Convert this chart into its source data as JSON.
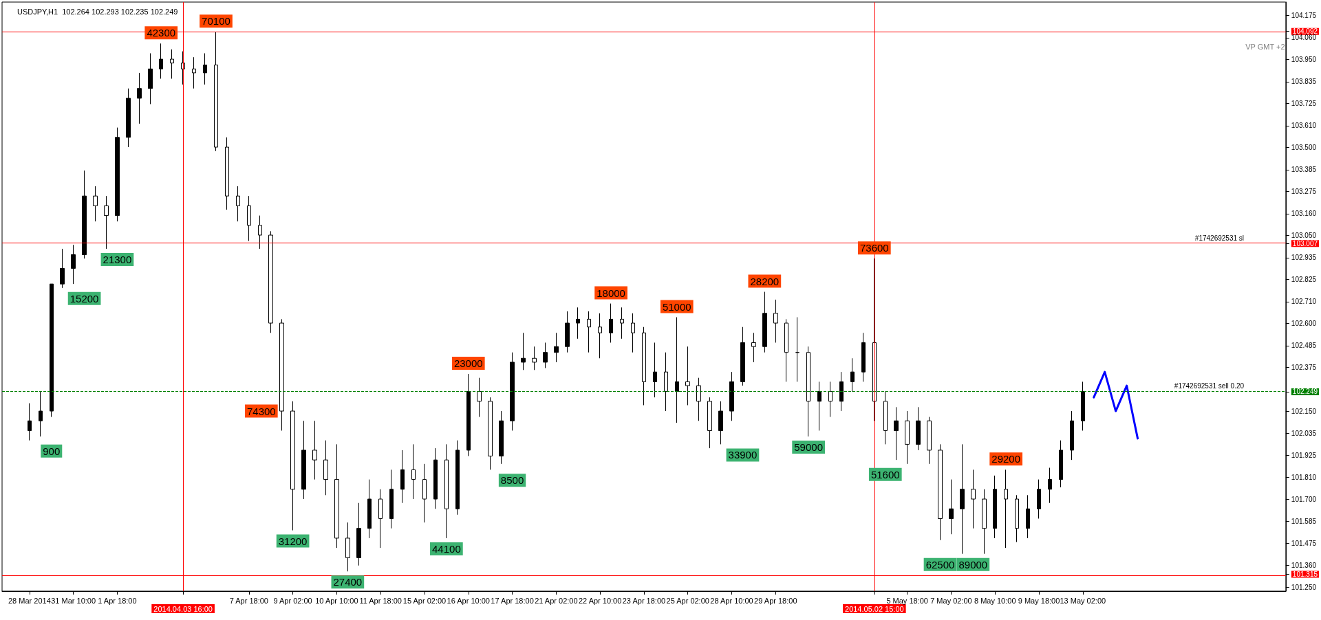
{
  "chart_data": {
    "type": "candlestick",
    "title": "USDJPY,H1  102.264 102.293 102.235 102.249",
    "color": "#000000",
    "categories": [
      null,
      null,
      "28 Mar 2014",
      null,
      null,
      null,
      "31 Mar 10:00",
      null,
      null,
      null,
      "1 Apr 18:00",
      null,
      null,
      null,
      null,
      null,
      "2014.04.03 16:00",
      null,
      null,
      null,
      null,
      null,
      "7 Apr 18:00",
      null,
      null,
      null,
      "9 Apr 02:00",
      null,
      null,
      null,
      "10 Apr 10:00",
      null,
      null,
      null,
      "11 Apr 18:00",
      null,
      null,
      null,
      "15 Apr 02:00",
      null,
      null,
      null,
      "16 Apr 10:00",
      null,
      null,
      null,
      "17 Apr 18:00",
      null,
      null,
      null,
      "21 Apr 02:00",
      null,
      null,
      null,
      "22 Apr 10:00",
      null,
      null,
      null,
      "23 Apr 18:00",
      null,
      null,
      null,
      "25 Apr 02:00",
      null,
      null,
      null,
      "28 Apr 10:00",
      null,
      null,
      null,
      "29 Apr 18:00",
      null,
      null,
      null,
      null,
      null,
      null,
      null,
      null,
      "2014.05.02 15:00",
      null,
      null,
      "5 May 18:00",
      null,
      null,
      null,
      "7 May 02:00",
      null,
      null,
      null,
      "8 May 10:00",
      null,
      null,
      null,
      "9 May 18:00",
      null,
      null,
      null,
      "13 May 02:00",
      null,
      null,
      null,
      null,
      null,
      null,
      null,
      null,
      null,
      null,
      null,
      null,
      null,
      null,
      null,
      null,
      null,
      null
    ],
    "ohlc": [
      null,
      null,
      [
        102.05,
        102.19,
        102.0,
        102.1
      ],
      [
        102.1,
        102.25,
        102.02,
        102.15
      ],
      [
        102.15,
        102.8,
        102.12,
        102.8
      ],
      [
        102.8,
        102.98,
        102.78,
        102.88
      ],
      [
        102.88,
        103.0,
        102.8,
        102.95
      ],
      [
        102.95,
        103.38,
        102.93,
        103.25
      ],
      [
        103.25,
        103.3,
        103.12,
        103.2
      ],
      [
        103.2,
        103.25,
        102.98,
        103.15
      ],
      [
        103.15,
        103.6,
        103.12,
        103.55
      ],
      [
        103.55,
        103.8,
        103.5,
        103.75
      ],
      [
        103.75,
        103.88,
        103.62,
        103.8
      ],
      [
        103.8,
        103.98,
        103.72,
        103.9
      ],
      [
        103.9,
        104.03,
        103.85,
        103.95
      ],
      [
        103.95,
        104.0,
        103.85,
        103.93
      ],
      [
        103.93,
        103.99,
        103.82,
        103.9
      ],
      [
        103.9,
        103.96,
        103.8,
        103.88
      ],
      [
        103.88,
        103.98,
        103.82,
        103.92
      ],
      [
        103.92,
        104.09,
        103.48,
        103.5
      ],
      [
        103.5,
        103.55,
        103.18,
        103.25
      ],
      [
        103.25,
        103.3,
        103.12,
        103.2
      ],
      [
        103.2,
        103.25,
        103.02,
        103.1
      ],
      [
        103.1,
        103.15,
        102.98,
        103.05
      ],
      [
        103.05,
        103.07,
        102.55,
        102.6
      ],
      [
        102.6,
        102.62,
        102.05,
        102.15
      ],
      [
        102.15,
        102.2,
        101.54,
        101.75
      ],
      [
        101.75,
        102.1,
        101.7,
        101.95
      ],
      [
        101.95,
        102.1,
        101.8,
        101.9
      ],
      [
        101.9,
        102.0,
        101.72,
        101.8
      ],
      [
        101.8,
        101.98,
        101.45,
        101.5
      ],
      [
        101.5,
        101.58,
        101.33,
        101.4
      ],
      [
        101.4,
        101.68,
        101.36,
        101.55
      ],
      [
        101.55,
        101.8,
        101.5,
        101.7
      ],
      [
        101.7,
        101.75,
        101.45,
        101.6
      ],
      [
        101.6,
        101.85,
        101.55,
        101.75
      ],
      [
        101.75,
        101.95,
        101.68,
        101.85
      ],
      [
        101.85,
        101.98,
        101.7,
        101.8
      ],
      [
        101.8,
        101.88,
        101.58,
        101.7
      ],
      [
        101.7,
        101.96,
        101.65,
        101.9
      ],
      [
        101.9,
        101.98,
        101.5,
        101.65
      ],
      [
        101.65,
        102.0,
        101.62,
        101.95
      ],
      [
        101.95,
        102.34,
        101.92,
        102.25
      ],
      [
        102.25,
        102.32,
        102.12,
        102.2
      ],
      [
        102.2,
        102.22,
        101.85,
        101.92
      ],
      [
        101.92,
        102.15,
        101.88,
        102.1
      ],
      [
        102.1,
        102.45,
        102.05,
        102.4
      ],
      [
        102.4,
        102.55,
        102.36,
        102.42
      ],
      [
        102.42,
        102.48,
        102.36,
        102.4
      ],
      [
        102.4,
        102.5,
        102.37,
        102.45
      ],
      [
        102.45,
        102.55,
        102.4,
        102.48
      ],
      [
        102.48,
        102.66,
        102.45,
        102.6
      ],
      [
        102.6,
        102.68,
        102.52,
        102.62
      ],
      [
        102.62,
        102.66,
        102.45,
        102.58
      ],
      [
        102.58,
        102.65,
        102.42,
        102.55
      ],
      [
        102.55,
        102.7,
        102.5,
        102.62
      ],
      [
        102.62,
        102.68,
        102.52,
        102.6
      ],
      [
        102.6,
        102.65,
        102.45,
        102.55
      ],
      [
        102.55,
        102.58,
        102.18,
        102.3
      ],
      [
        102.3,
        102.5,
        102.22,
        102.35
      ],
      [
        102.35,
        102.45,
        102.15,
        102.25
      ],
      [
        102.25,
        102.63,
        102.09,
        102.3
      ],
      [
        102.3,
        102.48,
        102.18,
        102.28
      ],
      [
        102.28,
        102.32,
        102.1,
        102.2
      ],
      [
        102.2,
        102.22,
        101.96,
        102.05
      ],
      [
        102.05,
        102.2,
        101.98,
        102.15
      ],
      [
        102.15,
        102.35,
        102.1,
        102.3
      ],
      [
        102.3,
        102.58,
        102.28,
        102.5
      ],
      [
        102.5,
        102.55,
        102.4,
        102.48
      ],
      [
        102.48,
        102.76,
        102.45,
        102.65
      ],
      [
        102.65,
        102.72,
        102.5,
        102.6
      ],
      [
        102.6,
        102.62,
        102.3,
        102.45
      ],
      [
        102.45,
        102.63,
        102.3,
        102.45
      ],
      [
        102.45,
        102.48,
        102.02,
        102.2
      ],
      [
        102.2,
        102.3,
        102.05,
        102.25
      ],
      [
        102.25,
        102.3,
        102.12,
        102.2
      ],
      [
        102.2,
        102.35,
        102.15,
        102.3
      ],
      [
        102.3,
        102.42,
        102.25,
        102.35
      ],
      [
        102.35,
        102.55,
        102.3,
        102.5
      ],
      [
        102.5,
        102.93,
        102.1,
        102.2
      ],
      [
        102.2,
        102.25,
        101.98,
        102.05
      ],
      [
        102.05,
        102.17,
        101.9,
        102.1
      ],
      [
        102.1,
        102.15,
        101.88,
        101.98
      ],
      [
        101.98,
        102.17,
        101.95,
        102.1
      ],
      [
        102.1,
        102.12,
        101.88,
        101.95
      ],
      [
        101.95,
        101.98,
        101.49,
        101.6
      ],
      [
        101.6,
        101.8,
        101.52,
        101.65
      ],
      [
        101.65,
        101.98,
        101.42,
        101.75
      ],
      [
        101.75,
        101.85,
        101.55,
        101.7
      ],
      [
        101.7,
        101.75,
        101.42,
        101.55
      ],
      [
        101.55,
        101.82,
        101.5,
        101.75
      ],
      [
        101.75,
        101.85,
        101.45,
        101.7
      ],
      [
        101.7,
        101.72,
        101.48,
        101.55
      ],
      [
        101.55,
        101.72,
        101.5,
        101.65
      ],
      [
        101.65,
        101.8,
        101.6,
        101.75
      ],
      [
        101.75,
        101.86,
        101.68,
        101.8
      ],
      [
        101.8,
        102.0,
        101.76,
        101.95
      ],
      [
        101.95,
        102.15,
        101.9,
        102.1
      ],
      [
        102.1,
        102.3,
        102.05,
        102.25
      ],
      null,
      null,
      null,
      null,
      null,
      null,
      null,
      null,
      null,
      null,
      null,
      null,
      null,
      null,
      null,
      null,
      null,
      null
    ],
    "value_labels": [
      null,
      null,
      null,
      null,
      "900",
      null,
      null,
      "15200",
      null,
      null,
      "21300",
      null,
      null,
      null,
      "42300",
      null,
      null,
      null,
      null,
      "70100",
      null,
      null,
      null,
      null,
      null,
      "74300",
      "31200",
      null,
      null,
      null,
      null,
      "27400",
      null,
      null,
      null,
      null,
      null,
      null,
      null,
      null,
      "44100",
      null,
      "23000",
      null,
      null,
      null,
      "8500",
      null,
      null,
      null,
      null,
      null,
      null,
      null,
      null,
      "18000",
      null,
      null,
      null,
      null,
      null,
      "51000",
      null,
      null,
      null,
      null,
      null,
      "33900",
      null,
      "28200",
      null,
      null,
      null,
      "59000",
      null,
      null,
      null,
      null,
      null,
      "73600",
      "51600",
      null,
      null,
      null,
      null,
      "62500",
      null,
      null,
      "89000",
      null,
      null,
      "29200",
      null,
      null,
      null,
      null,
      null,
      null,
      null,
      null,
      null,
      null,
      null,
      null,
      null,
      null,
      null,
      null,
      null,
      null,
      null,
      null,
      null,
      null,
      null,
      null,
      null
    ],
    "series": [
      {
        "type": "line",
        "color": "#0000ff",
        "values": [
          null,
          null,
          null,
          null,
          null,
          null,
          null,
          null,
          null,
          null,
          null,
          null,
          null,
          null,
          null,
          null,
          null,
          null,
          null,
          null,
          null,
          null,
          null,
          null,
          null,
          null,
          null,
          null,
          null,
          null,
          null,
          null,
          null,
          null,
          null,
          null,
          null,
          null,
          null,
          null,
          null,
          null,
          null,
          null,
          null,
          null,
          null,
          null,
          null,
          null,
          null,
          null,
          null,
          null,
          null,
          null,
          null,
          null,
          null,
          null,
          null,
          null,
          null,
          null,
          null,
          null,
          null,
          null,
          null,
          null,
          null,
          null,
          null,
          null,
          null,
          null,
          null,
          null,
          null,
          null,
          null,
          null,
          null,
          null,
          null,
          null,
          null,
          null,
          null,
          null,
          null,
          null,
          null,
          null,
          null,
          null,
          null,
          null,
          null,
          102.22,
          102.35,
          102.15,
          102.28,
          102.01,
          null,
          null,
          null,
          null,
          null,
          null,
          null,
          null,
          null,
          null,
          null,
          null,
          null
        ]
      }
    ],
    "marker": "none",
    "ylim": [
      101.229,
      104.242
    ],
    "yticks": [
      104.175,
      104.092,
      {
        "value": 104.06,
        "label": "104.060"
      },
      {
        "value": 103.95,
        "label": "103.950"
      },
      103.835,
      103.725,
      {
        "value": 103.61,
        "label": "103.610"
      },
      {
        "value": 103.5,
        "label": "103.500"
      },
      103.385,
      103.275,
      {
        "value": 103.16,
        "label": "103.160"
      },
      {
        "value": 103.05,
        "label": "103.050"
      },
      103.007,
      102.935,
      102.825,
      {
        "value": 102.71,
        "label": "102.710"
      },
      {
        "value": 102.6,
        "label": "102.600"
      },
      102.485,
      102.375,
      102.249,
      {
        "value": 102.15,
        "label": "102.150"
      },
      102.035,
      101.925,
      {
        "value": 101.81,
        "label": "101.810"
      },
      {
        "value": 101.7,
        "label": "101.700"
      },
      101.585,
      101.475,
      {
        "value": 101.36,
        "label": "101.360"
      },
      101.315,
      {
        "value": 101.25,
        "label": "101.250"
      }
    ],
    "ref_lines": [
      {
        "axis": "y",
        "value": 104.092,
        "color": "#ff0000",
        "line_style": "solid"
      },
      {
        "axis": "y",
        "value": 103.007,
        "label": "#1742692531 sl",
        "color": "#ff0000",
        "line_style": "solid"
      },
      {
        "axis": "y",
        "value": 102.249,
        "label": "#1742692531 sell 0.20",
        "color": "#008000",
        "line_style": "dashed"
      },
      {
        "axis": "y",
        "value": 101.315,
        "color": "#ff0000",
        "line_style": "solid"
      },
      {
        "axis": "x",
        "value": "2014.04.03 16:00",
        "color": "#ff0000",
        "line_style": "solid"
      },
      {
        "axis": "x",
        "value": "2014.05.02 15:00",
        "color": "#ff0000",
        "line_style": "solid"
      }
    ],
    "annotations": [
      "VP GMT +2"
    ]
  }
}
